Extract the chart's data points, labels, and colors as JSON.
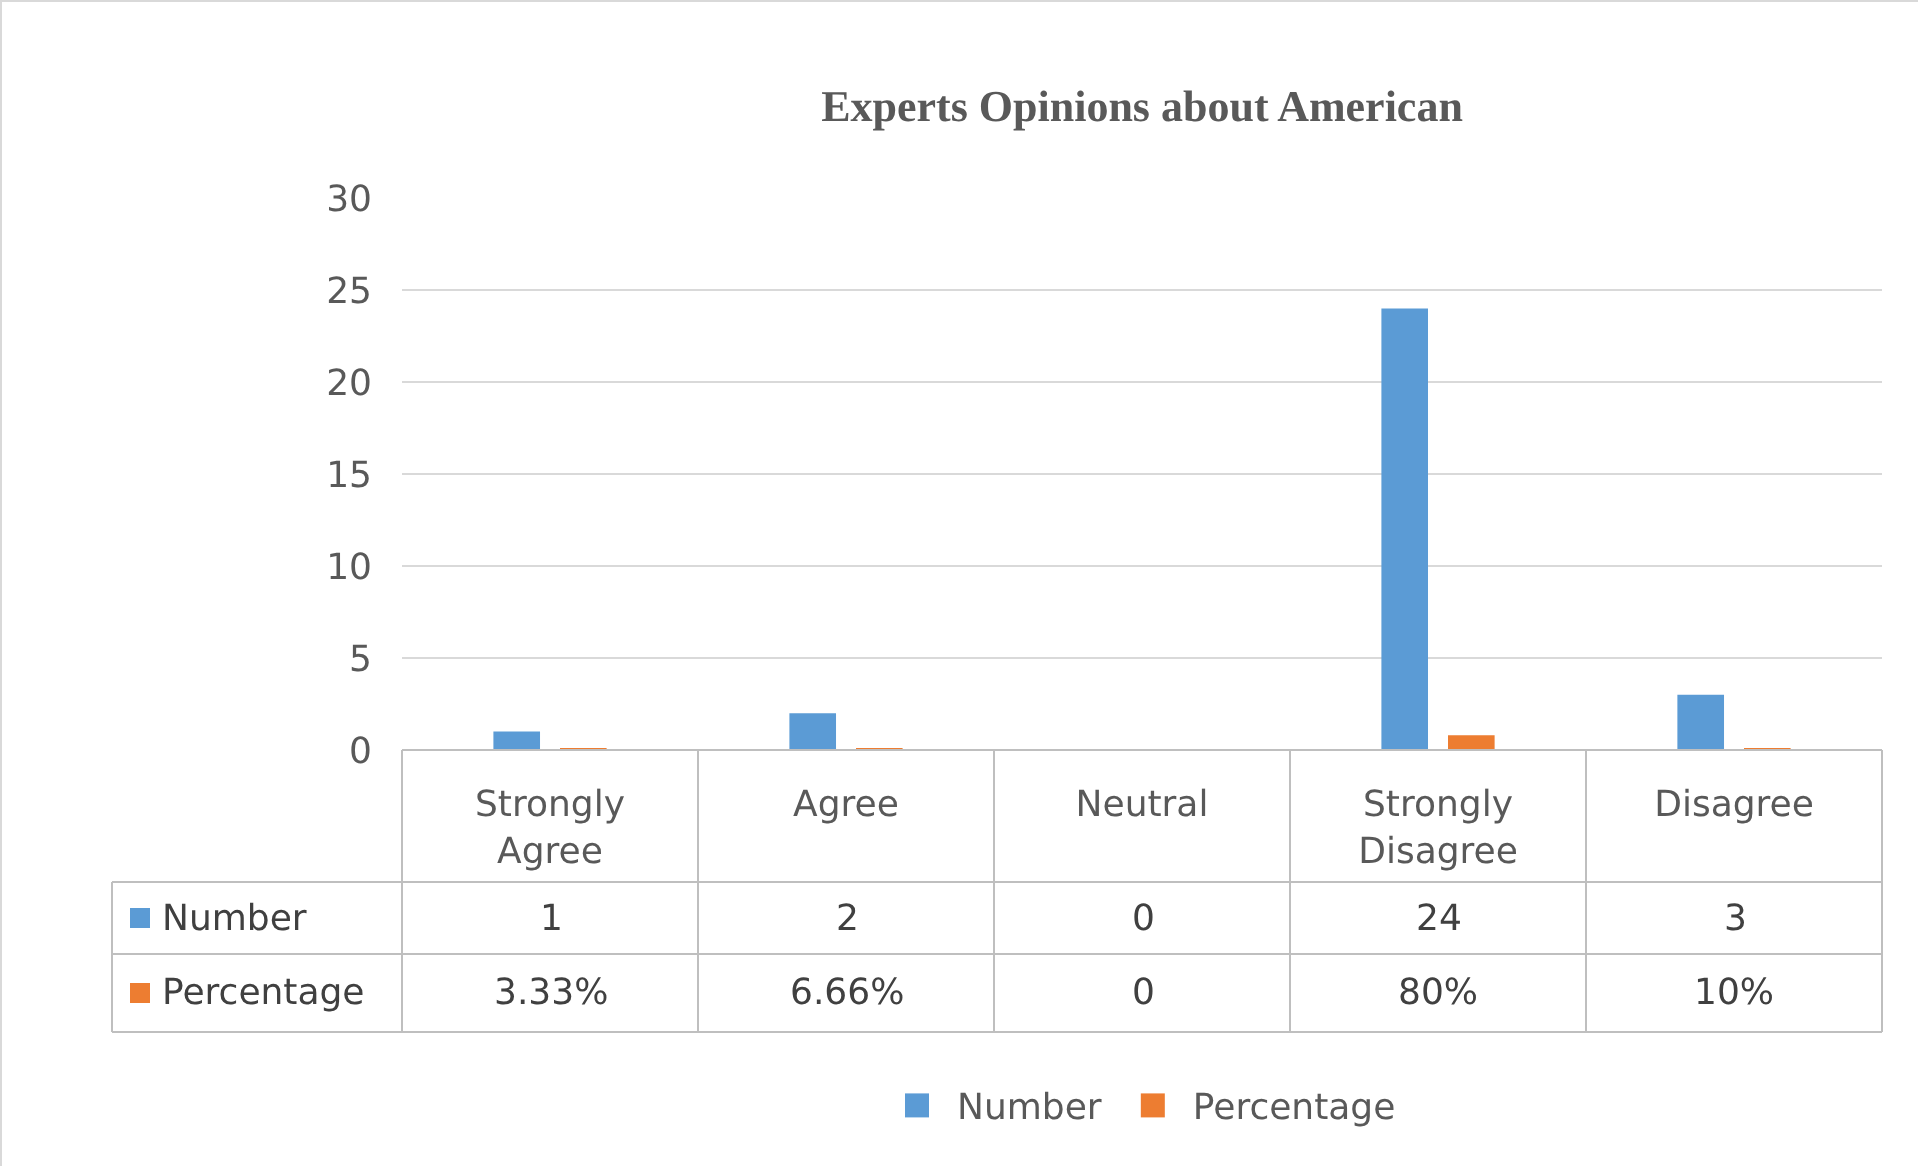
{
  "chart_data": {
    "type": "bar",
    "title": "Experts Opinions about American",
    "categories": [
      "Strongly Agree",
      "Agree",
      "Neutral",
      "Strongly Disagree",
      "Disagree"
    ],
    "series": [
      {
        "name": "Number",
        "color": "#5b9bd5",
        "values": [
          1,
          2,
          0,
          24,
          3
        ],
        "value_labels": [
          "1",
          "2",
          "0",
          "24",
          "3"
        ]
      },
      {
        "name": "Percentage",
        "color": "#ed7d31",
        "values": [
          0.0333,
          0.0666,
          0,
          0.8,
          0.1
        ],
        "value_labels": [
          "3.33%",
          "6.66%",
          "0",
          "80%",
          "10%"
        ]
      }
    ],
    "ylim": [
      0,
      30
    ],
    "yticks": [
      0,
      5,
      10,
      15,
      20,
      25,
      30
    ],
    "grid": true,
    "legend": "bottom"
  }
}
